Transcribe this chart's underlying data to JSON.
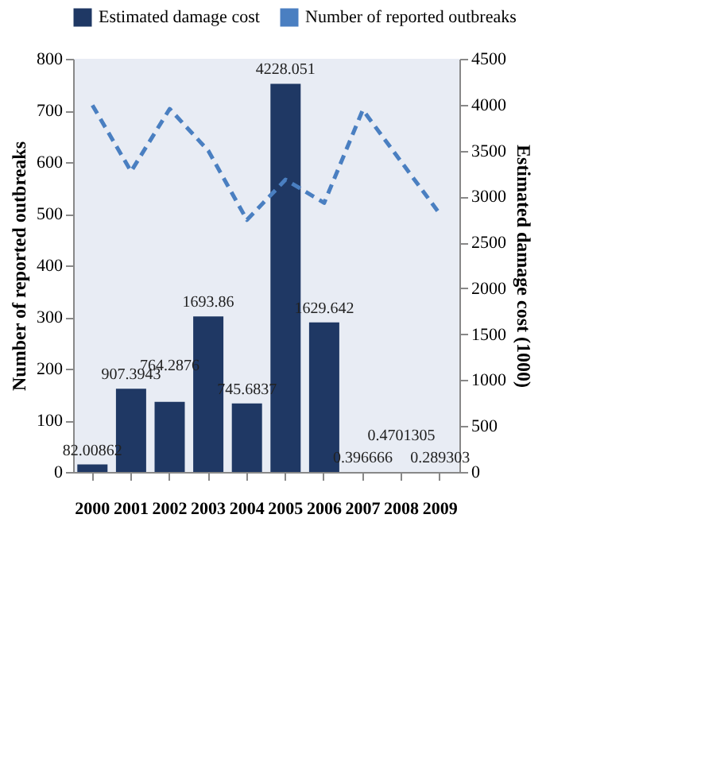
{
  "chart_data": {
    "type": "bar",
    "categories": [
      "2000",
      "2001",
      "2002",
      "2003",
      "2004",
      "2005",
      "2006",
      "2007",
      "2008",
      "2009"
    ],
    "series": [
      {
        "name": "Estimated damage cost",
        "axis": "y2",
        "color": "#1f3864",
        "values": [
          82.00862,
          907.3943,
          764.2876,
          1693.86,
          745.6837,
          4228.051,
          1629.642,
          0.396666,
          0.4701305,
          0.289303
        ],
        "value_labels": [
          "82.00862",
          "907.3943",
          "764.2876",
          "1693.86",
          "745.6837",
          "4228.051",
          "1629.642",
          "0.396666",
          "0.4701305",
          "0.289303"
        ]
      },
      {
        "name": "Number of reported outbreaks",
        "type": "line",
        "color": "#4a7fc1",
        "line_style": "dashed",
        "marker": "none",
        "values": [
          710,
          582,
          703,
          622,
          488,
          566,
          521,
          701,
          600,
          499
        ]
      }
    ],
    "ylabel": "Number of reported outbreaks",
    "y2label": "Estimated damage cost (1000)",
    "ylim": [
      0,
      800
    ],
    "yticks": [
      0,
      100,
      200,
      300,
      400,
      500,
      600,
      700,
      800
    ],
    "y2lim": [
      0,
      4500
    ],
    "y2ticks": [
      0,
      500,
      1000,
      1500,
      2000,
      2500,
      3000,
      3500,
      4000,
      4500
    ],
    "grid": false,
    "legend": "top"
  }
}
